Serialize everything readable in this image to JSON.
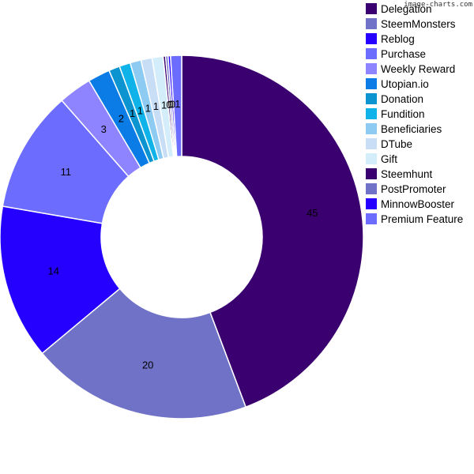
{
  "watermark": "image-charts.com",
  "chart_data": {
    "type": "pie",
    "subtype": "doughnut",
    "legend_position": "top-right",
    "categories": [
      "Delegation",
      "SteemMonsters",
      "Reblog",
      "Purchase",
      "Weekly Reward",
      "Utopian.io",
      "Donation",
      "Fundition",
      "Beneficiaries",
      "DTube",
      "Gift",
      "Steemhunt",
      "PostPromoter",
      "MinnowBooster",
      "Premium Feature"
    ],
    "values": [
      45,
      20,
      14,
      11,
      3,
      2,
      1,
      1,
      1,
      1,
      1,
      0,
      0,
      0,
      1
    ],
    "labels": [
      "45",
      "20",
      "14",
      "11",
      "3",
      "2",
      "1",
      "1",
      "1",
      "1",
      "1",
      "0",
      "0",
      "0",
      "1"
    ],
    "colors": [
      "#3a006f",
      "#6f72c6",
      "#2500ff",
      "#6c6cff",
      "#8e84ff",
      "#0b7be6",
      "#0b94cf",
      "#0fb3e9",
      "#8ecbf2",
      "#c8def7",
      "#d3eefa",
      "#3a006f",
      "#6f72c6",
      "#2500ff",
      "#6c6cff"
    ]
  }
}
